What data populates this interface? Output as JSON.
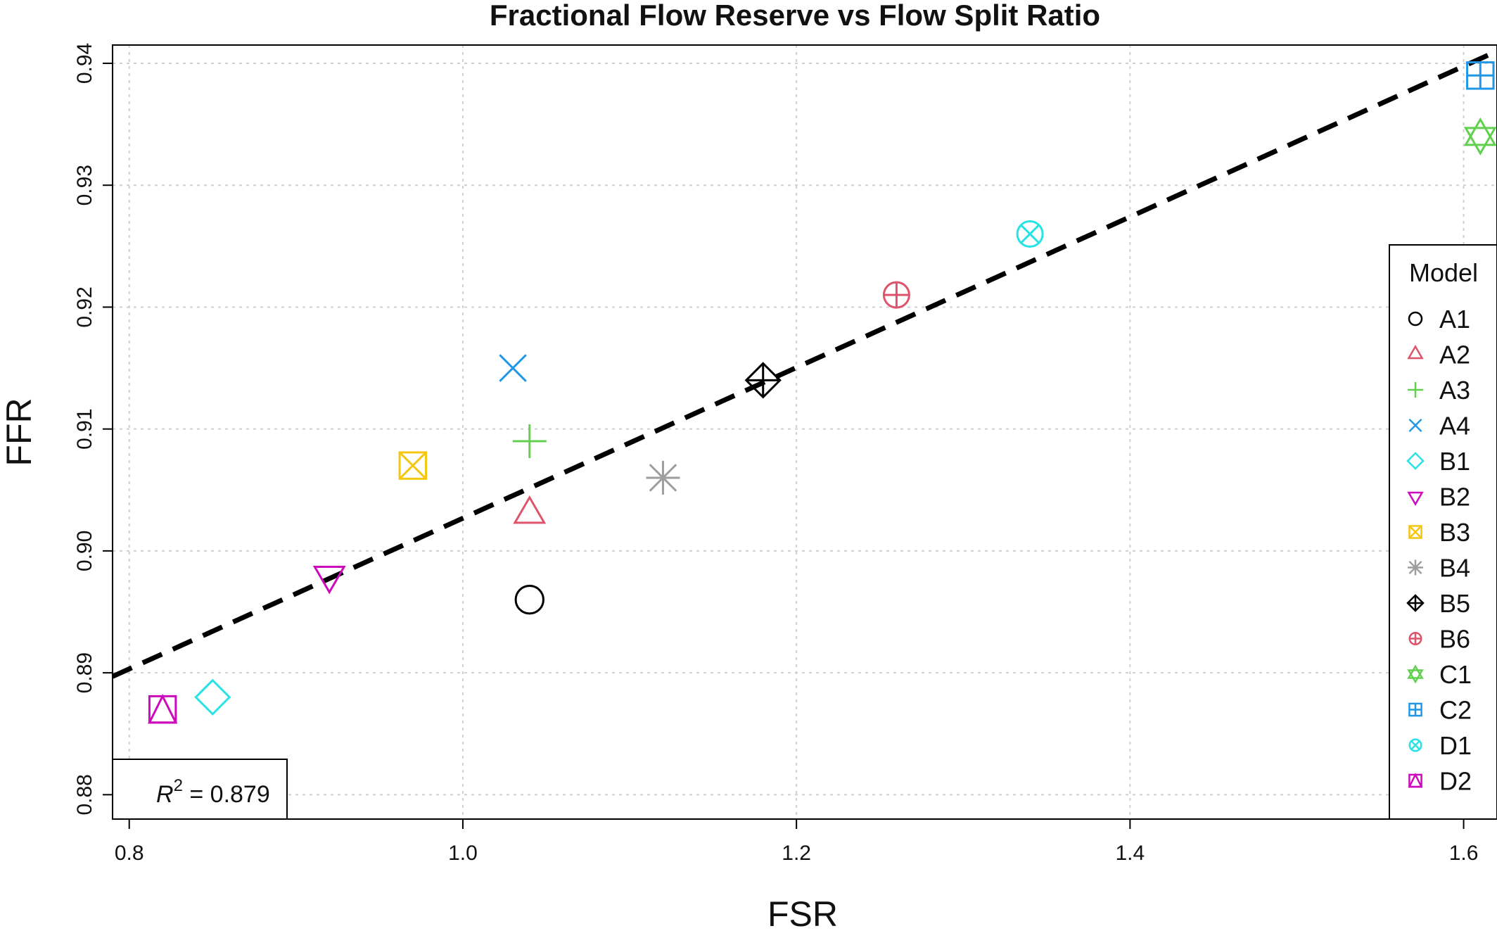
{
  "chart_data": {
    "type": "scatter",
    "title": "Fractional Flow Reserve vs Flow Split Ratio",
    "xlabel": "FSR",
    "ylabel": "FFR",
    "xlim": [
      0.79,
      1.62
    ],
    "ylim": [
      0.878,
      0.9415
    ],
    "x_ticks": [
      "0.8",
      "1.0",
      "1.2",
      "1.4",
      "1.6"
    ],
    "y_ticks": [
      "0.88",
      "0.89",
      "0.90",
      "0.91",
      "0.92",
      "0.93",
      "0.94"
    ],
    "grid": true,
    "legend": {
      "title": "Model",
      "position": "right"
    },
    "r2_label": {
      "prefix": "R",
      "superscript": "2",
      "text": " = 0.879"
    },
    "fit_line": {
      "style": "dashed",
      "color": "#000000",
      "x": [
        0.79,
        1.62
      ],
      "y": [
        0.8897,
        0.941
      ]
    },
    "series": [
      {
        "name": "A1",
        "symbol": "circle",
        "color": "#000000",
        "x": 1.04,
        "y": 0.896
      },
      {
        "name": "A2",
        "symbol": "triangle-up",
        "color": "#DF536B",
        "x": 1.04,
        "y": 0.903
      },
      {
        "name": "A3",
        "symbol": "plus",
        "color": "#61D04F",
        "x": 1.04,
        "y": 0.909
      },
      {
        "name": "A4",
        "symbol": "cross",
        "color": "#2297E6",
        "x": 1.03,
        "y": 0.915
      },
      {
        "name": "B1",
        "symbol": "diamond",
        "color": "#28E2E5",
        "x": 0.85,
        "y": 0.888
      },
      {
        "name": "B2",
        "symbol": "triangle-down",
        "color": "#CD0BBC",
        "x": 0.92,
        "y": 0.898
      },
      {
        "name": "B3",
        "symbol": "square-cross",
        "color": "#F5C710",
        "x": 0.97,
        "y": 0.907
      },
      {
        "name": "B4",
        "symbol": "asterisk",
        "color": "#9E9E9E",
        "x": 1.12,
        "y": 0.906
      },
      {
        "name": "B5",
        "symbol": "diamond-plus",
        "color": "#000000",
        "x": 1.18,
        "y": 0.914
      },
      {
        "name": "B6",
        "symbol": "circle-plus",
        "color": "#DF536B",
        "x": 1.26,
        "y": 0.921
      },
      {
        "name": "C1",
        "symbol": "star-of-david",
        "color": "#61D04F",
        "x": 1.61,
        "y": 0.934
      },
      {
        "name": "C2",
        "symbol": "square-plus",
        "color": "#2297E6",
        "x": 1.61,
        "y": 0.939
      },
      {
        "name": "D1",
        "symbol": "circle-cross",
        "color": "#28E2E5",
        "x": 1.34,
        "y": 0.926
      },
      {
        "name": "D2",
        "symbol": "square-triangle",
        "color": "#CD0BBC",
        "x": 0.82,
        "y": 0.887
      }
    ]
  }
}
